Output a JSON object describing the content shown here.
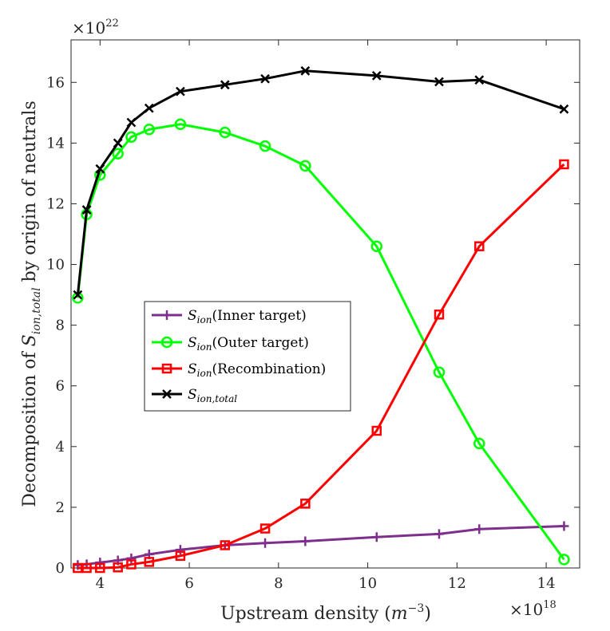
{
  "chart_data": {
    "type": "line",
    "xlabel": "Upstream density (m^-3)",
    "xlabel_parts": {
      "main": "Upstream density (",
      "var": "m",
      "sup": "−3",
      "close": ")"
    },
    "ylabel_parts": {
      "pre": "Decomposition of ",
      "var": "S",
      "sub": "ion,total",
      "post": " by origin of neutrals"
    },
    "x_exponent_base": "×10",
    "x_exponent": "18",
    "y_exponent_base": "×10",
    "y_exponent": "22",
    "xlim": [
      3.35,
      14.75
    ],
    "ylim": [
      0,
      17.4
    ],
    "x_ticks": [
      4,
      6,
      8,
      10,
      12,
      14
    ],
    "y_ticks": [
      0,
      2,
      4,
      6,
      8,
      10,
      12,
      14,
      16
    ],
    "grid": false,
    "legend_position": "center-left",
    "x": [
      3.5,
      3.7,
      4.0,
      4.4,
      4.7,
      5.1,
      5.8,
      6.8,
      7.7,
      8.6,
      10.2,
      11.6,
      12.5,
      14.4
    ],
    "series": [
      {
        "name": "S_ion(Inner target)",
        "legend_var": "S",
        "legend_sub": "ion",
        "legend_rest": "(Inner target)",
        "color": "#7e2f8e",
        "marker": "plus",
        "values": [
          0.1,
          0.12,
          0.18,
          0.25,
          0.32,
          0.45,
          0.6,
          0.75,
          0.82,
          0.88,
          1.02,
          1.12,
          1.28,
          1.38
        ]
      },
      {
        "name": "S_ion(Outer target)",
        "legend_var": "S",
        "legend_sub": "ion",
        "legend_rest": "(Outer target)",
        "color": "#00ff00",
        "marker": "circle",
        "values": [
          8.9,
          11.65,
          12.95,
          13.65,
          14.2,
          14.45,
          14.62,
          14.35,
          13.9,
          13.25,
          10.6,
          6.45,
          4.1,
          0.28
        ]
      },
      {
        "name": "S_ion(Recombination)",
        "legend_var": "S",
        "legend_sub": "ion",
        "legend_rest": "(Recombination)",
        "color": "#ff0000",
        "marker": "square",
        "values": [
          0.0,
          0.0,
          0.0,
          0.02,
          0.12,
          0.2,
          0.4,
          0.75,
          1.3,
          2.12,
          4.52,
          8.35,
          10.6,
          13.3
        ]
      },
      {
        "name": "S_ion,total",
        "legend_var": "S",
        "legend_sub": "ion,total",
        "legend_rest": "",
        "color": "#000000",
        "marker": "x",
        "values": [
          9.0,
          11.8,
          13.15,
          14.0,
          14.68,
          15.15,
          15.7,
          15.92,
          16.12,
          16.38,
          16.22,
          16.02,
          16.08,
          15.12
        ]
      }
    ]
  }
}
